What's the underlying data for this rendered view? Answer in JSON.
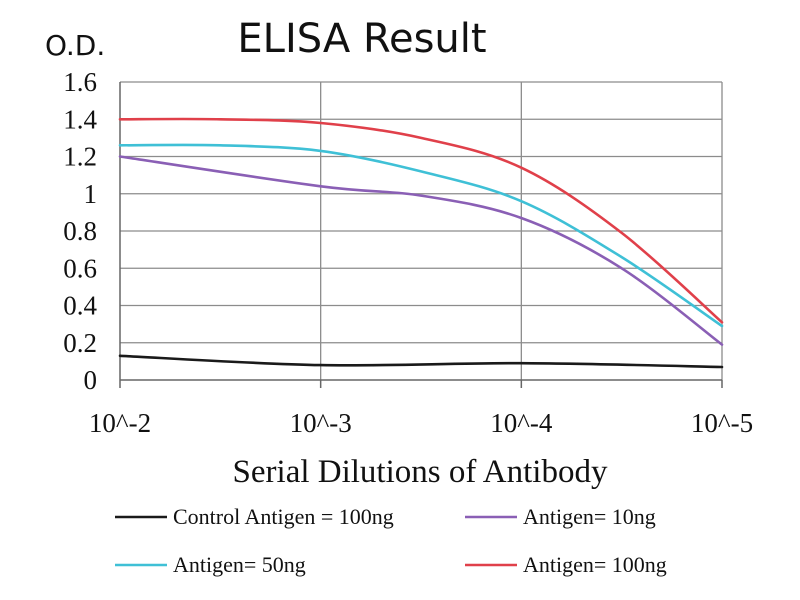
{
  "chart_data": {
    "type": "line",
    "title": "ELISA Result",
    "ylabel": "O.D.",
    "xlabel": "Serial Dilutions of Antibody",
    "categories": [
      "10^-2",
      "10^-3",
      "10^-4",
      "10^-5"
    ],
    "ylim": [
      0,
      1.6
    ],
    "yticks": [
      "0",
      "0.2",
      "0.4",
      "0.6",
      "0.8",
      "1",
      "1.2",
      "1.4",
      "1.6"
    ],
    "grid": true,
    "legend_position": "bottom",
    "series": [
      {
        "name": "Control Antigen = 100ng",
        "color": "#1a1a1a",
        "points": [
          [
            0,
            0.13
          ],
          [
            1,
            0.08
          ],
          [
            2,
            0.09
          ],
          [
            3,
            0.07
          ]
        ]
      },
      {
        "name": "Antigen= 10ng",
        "color": "#8a5fb5",
        "points": [
          [
            0,
            1.2
          ],
          [
            1,
            1.04
          ],
          [
            1.5,
            0.99
          ],
          [
            2,
            0.87
          ],
          [
            2.5,
            0.6
          ],
          [
            3,
            0.19
          ]
        ]
      },
      {
        "name": "Antigen= 50ng",
        "color": "#3fc0d6",
        "points": [
          [
            0,
            1.26
          ],
          [
            0.5,
            1.26
          ],
          [
            1,
            1.23
          ],
          [
            1.5,
            1.12
          ],
          [
            2,
            0.96
          ],
          [
            2.5,
            0.66
          ],
          [
            3,
            0.29
          ]
        ]
      },
      {
        "name": "Antigen= 100ng",
        "color": "#e0404a",
        "points": [
          [
            0,
            1.4
          ],
          [
            0.5,
            1.4
          ],
          [
            1,
            1.38
          ],
          [
            1.5,
            1.3
          ],
          [
            2,
            1.14
          ],
          [
            2.5,
            0.79
          ],
          [
            3,
            0.31
          ]
        ]
      }
    ]
  }
}
